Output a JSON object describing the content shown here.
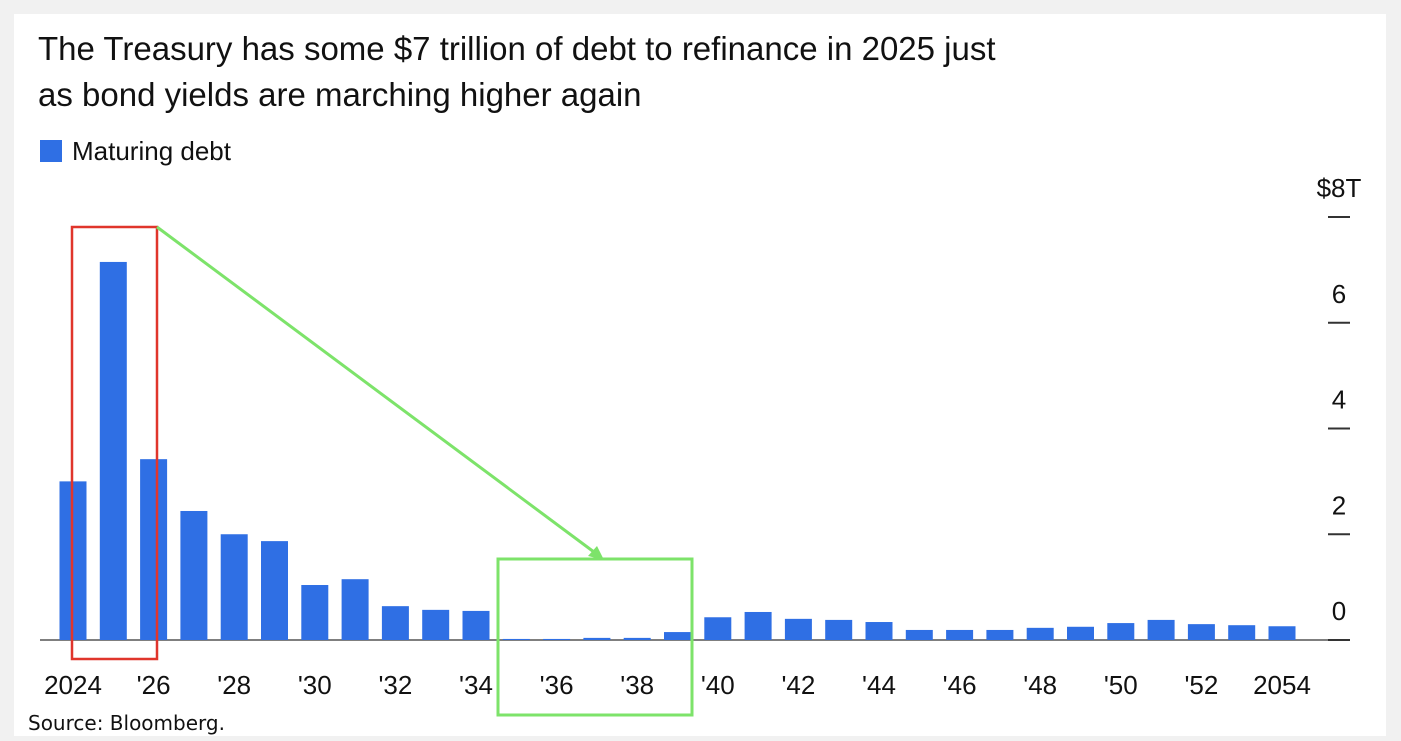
{
  "chart_data": {
    "type": "bar",
    "title": "The Treasury has some $7 trillion of debt to refinance in 2025 just as bond yields are marching higher again",
    "source": "Source: Bloomberg.",
    "categories": [
      "2024",
      null,
      "'26",
      null,
      "'28",
      null,
      "'30",
      null,
      "'32",
      null,
      "'34",
      null,
      "'36",
      null,
      "'38",
      null,
      "'40",
      null,
      "'42",
      null,
      "'44",
      null,
      "'46",
      null,
      "'48",
      null,
      "'50",
      null,
      "'52",
      null,
      "2054"
    ],
    "series": [
      {
        "name": "Maturing debt",
        "color": "#2f6fe4",
        "values": [
          3.0,
          7.15,
          3.42,
          2.44,
          2.0,
          1.87,
          1.04,
          1.15,
          0.64,
          0.57,
          0.55,
          0.02,
          0.02,
          0.04,
          0.04,
          0.15,
          0.43,
          0.53,
          0.4,
          0.38,
          0.34,
          0.19,
          0.19,
          0.19,
          0.23,
          0.25,
          0.32,
          0.38,
          0.3,
          0.28,
          0.26
        ]
      }
    ],
    "ylim": [
      0,
      8
    ],
    "yticks": [
      0,
      2,
      4,
      6,
      {
        "value": 8,
        "label": "$8T"
      }
    ],
    "grid": false
  }
}
